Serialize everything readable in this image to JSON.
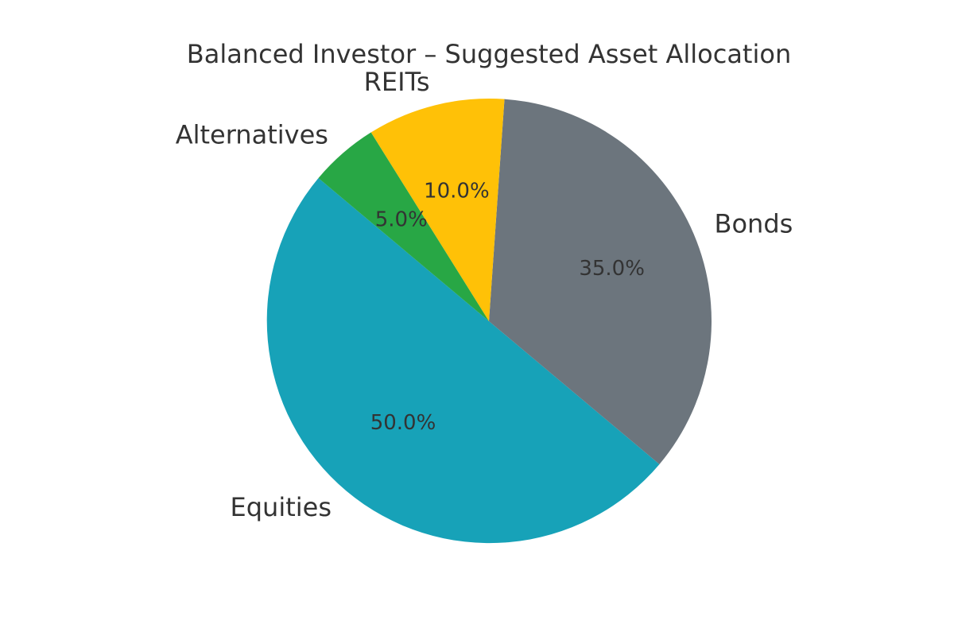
{
  "chart_data": {
    "type": "pie",
    "title": "Balanced Investor – Suggested Asset Allocation",
    "slices": [
      {
        "label": "Equities",
        "value": 50.0,
        "color": "#17a2b8"
      },
      {
        "label": "Bonds",
        "value": 35.0,
        "color": "#6c757d"
      },
      {
        "label": "REITs",
        "value": 10.0,
        "color": "#ffc107"
      },
      {
        "label": "Alternatives",
        "value": 5.0,
        "color": "#28a745"
      }
    ],
    "percent_labels": [
      "50.0%",
      "35.0%",
      "10.0%",
      "5.0%"
    ],
    "start_angle_deg": 140,
    "direction": "counterclockwise",
    "legend": "none",
    "grid": false
  }
}
